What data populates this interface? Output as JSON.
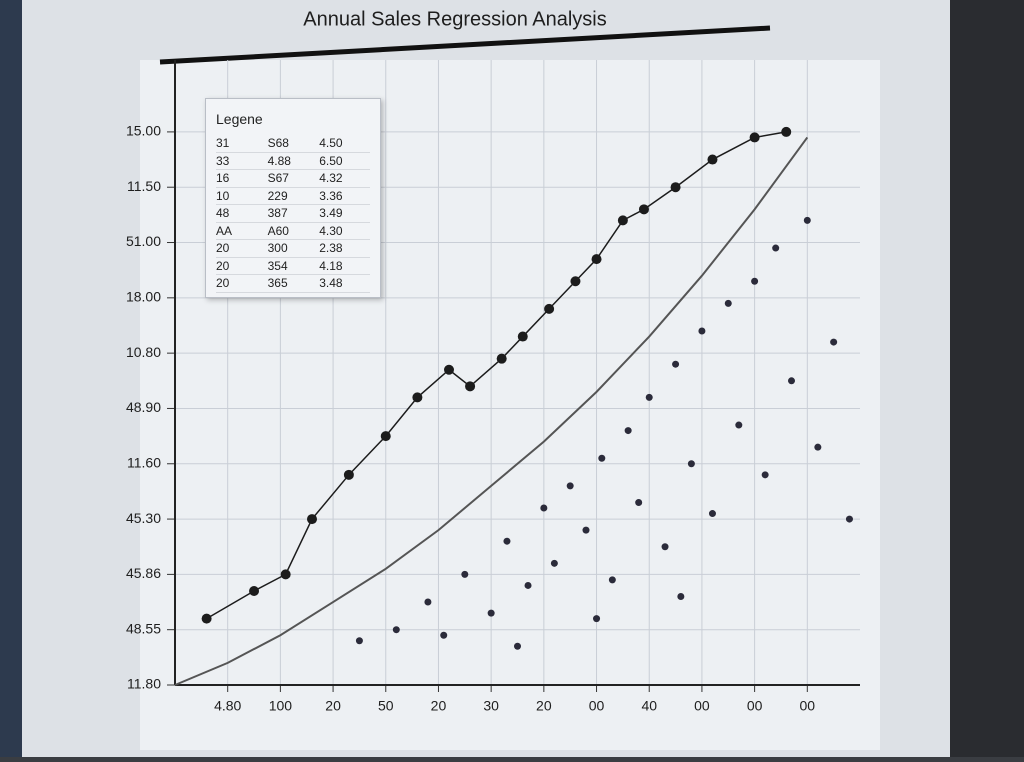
{
  "chart_data": {
    "type": "scatter",
    "title": "Annual Sales Regression Analysis",
    "xlim": [
      0,
      13
    ],
    "ylim": [
      0,
      11.3
    ],
    "grid": true,
    "yticks": [
      {
        "value": 0,
        "label": "11.80"
      },
      {
        "value": 1,
        "label": "48.55"
      },
      {
        "value": 2,
        "label": "45.86"
      },
      {
        "value": 3,
        "label": "45.30"
      },
      {
        "value": 4,
        "label": "11.60"
      },
      {
        "value": 5,
        "label": "48.90"
      },
      {
        "value": 6,
        "label": "10.80"
      },
      {
        "value": 7,
        "label": "18.00"
      },
      {
        "value": 8,
        "label": "51.00"
      },
      {
        "value": 9,
        "label": "11.50"
      },
      {
        "value": 10,
        "label": "15.00"
      }
    ],
    "xticks": [
      {
        "value": 1,
        "label": "4.80"
      },
      {
        "value": 2,
        "label": "100"
      },
      {
        "value": 3,
        "label": "20"
      },
      {
        "value": 4,
        "label": "50"
      },
      {
        "value": 5,
        "label": "20"
      },
      {
        "value": 6,
        "label": "30"
      },
      {
        "value": 7,
        "label": "20"
      },
      {
        "value": 8,
        "label": "00"
      },
      {
        "value": 9,
        "label": "40"
      },
      {
        "value": 10,
        "label": "00"
      },
      {
        "value": 11,
        "label": "00"
      },
      {
        "value": 12,
        "label": "00"
      }
    ],
    "legend": {
      "title": "Legene",
      "position": "upper left",
      "rows": [
        [
          "31",
          "S68",
          "4.50"
        ],
        [
          "33",
          "4.88",
          "6.50"
        ],
        [
          "16",
          "S67",
          "4.32"
        ],
        [
          "10",
          "229",
          "3.36"
        ],
        [
          "48",
          "387",
          "3.49"
        ],
        [
          "AA",
          "A60",
          "4.30"
        ],
        [
          "20",
          "300",
          "2.38"
        ],
        [
          "20",
          "354",
          "4.18"
        ],
        [
          "20",
          "365",
          "3.48"
        ]
      ]
    },
    "series": [
      {
        "style": "line",
        "color": "#1c1c1c",
        "x": [
          0.6,
          1.5,
          2.1,
          2.6,
          3.3,
          4.0,
          4.6,
          5.2,
          5.6,
          6.2,
          6.6,
          7.1,
          7.6,
          8.0,
          8.5,
          8.9,
          9.5,
          10.2,
          11.0,
          11.6
        ],
        "values": [
          1.2,
          1.7,
          2.0,
          3.0,
          3.8,
          4.5,
          5.2,
          5.7,
          5.4,
          5.9,
          6.3,
          6.8,
          7.3,
          7.7,
          8.4,
          8.6,
          9.0,
          9.5,
          9.9,
          10.0
        ]
      },
      {
        "style": "curve",
        "color": "#555555",
        "x": [
          0,
          1,
          2,
          3,
          4,
          5,
          6,
          7,
          8,
          9,
          10,
          11,
          12
        ],
        "values": [
          0,
          0.4,
          0.9,
          1.5,
          2.1,
          2.8,
          3.6,
          4.4,
          5.3,
          6.3,
          7.4,
          8.6,
          9.9
        ]
      },
      {
        "style": "points",
        "color": "#2b2b3a",
        "x": [
          3.5,
          4.2,
          4.8,
          5.1,
          5.5,
          6.0,
          6.3,
          6.7,
          7.0,
          7.2,
          7.5,
          7.8,
          8.1,
          8.3,
          8.6,
          8.8,
          9.0,
          9.3,
          9.5,
          9.8,
          10.0,
          10.2,
          10.5,
          10.7,
          11.0,
          11.2,
          11.4,
          11.7,
          12.0,
          12.2,
          12.5,
          12.8,
          6.5,
          8.0,
          9.6
        ],
        "values": [
          0.8,
          1.0,
          1.5,
          0.9,
          2.0,
          1.3,
          2.6,
          1.8,
          3.2,
          2.2,
          3.6,
          2.8,
          4.1,
          1.9,
          4.6,
          3.3,
          5.2,
          2.5,
          5.8,
          4.0,
          6.4,
          3.1,
          6.9,
          4.7,
          7.3,
          3.8,
          7.9,
          5.5,
          8.4,
          4.3,
          6.2,
          3.0,
          0.7,
          1.2,
          1.6
        ]
      }
    ]
  }
}
